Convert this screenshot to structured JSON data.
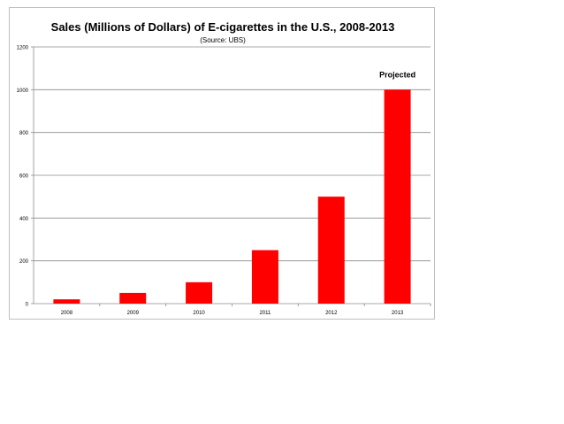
{
  "chart_data": {
    "type": "bar",
    "title": "Sales (Millions of Dollars) of E-cigarettes in the U.S., 2008-2013",
    "subtitle": "(Source: UBS)",
    "categories": [
      "2008",
      "2009",
      "2010",
      "2011",
      "2012",
      "2013"
    ],
    "values": [
      20,
      50,
      100,
      250,
      500,
      1000
    ],
    "xlabel": "",
    "ylabel": "",
    "ylim": [
      0,
      1200
    ],
    "yticks": [
      "0",
      "200",
      "400",
      "600",
      "800",
      "1000",
      "1200"
    ],
    "grid": true,
    "legend": "none",
    "annotations": [
      {
        "category": "2013",
        "text": "Projected"
      }
    ],
    "colors": {
      "bar": "#ff0000",
      "grid": "#8c8c8c",
      "axis": "#8c8c8c",
      "text": "#000000"
    }
  }
}
